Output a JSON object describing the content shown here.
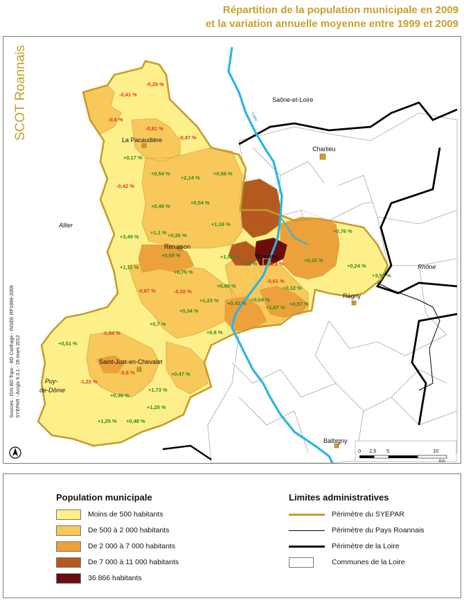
{
  "title": {
    "line1": "Répartition de la population municipale en 2009",
    "line2": "et la variation annuelle moyenne entre 1999 et 2009"
  },
  "brand": {
    "text": "SCOT Roannais"
  },
  "sources": {
    "line1": "Sources : IGN BD Topo - BD Carthage - INSEE RP1999-2009",
    "line2": "SYEPAR - Arcgis 9.3.1 - 26 mars 2012"
  },
  "regions": {
    "saone": "Saône-et-Loire",
    "allier": "Allier",
    "rhone": "Rhône",
    "puy1": "Puy-",
    "puy2": "de-Dôme",
    "loire_river": "Loire"
  },
  "towns": {
    "la_pacaudiere": "La Pacaudière",
    "charlieu": "Charlieu",
    "renaison": "Renaison",
    "roanne": "Roanne",
    "regny": "Régny",
    "saint_just": "Saint-Just-en-Chevalet",
    "balbigny": "Balbigny"
  },
  "variations": [
    "-0,29 %",
    "-0,41 %",
    "-0,6 %",
    "-0,81 %",
    "-0,47 %",
    "+0,17 %",
    "-0,42 %",
    "+0,54 %",
    "+2,14 %",
    "+0,56 %",
    "+0,49 %",
    "+0,54 %",
    "-0,18 %",
    "+1,16 %",
    "+3,49 %",
    "+1,1 %",
    "+0,26 %",
    "+0,76 %",
    "+0,59 %",
    "+1,05 %",
    "+1,8 %",
    "-0,2 %",
    "+0,32 %",
    "+1,11 %",
    "+0,75 %",
    "+0,24 %",
    "-0,61 %",
    "+3,53 %",
    "-0,67 %",
    "-0,32 %",
    "+0,96 %",
    "+0,12 %",
    "+1,23 %",
    "+0,42 %",
    "+0,04 %",
    "+0,57 %",
    "+0,34 %",
    "+1,67 %",
    "+0,7 %",
    "-0,94 %",
    "+0,8 %",
    "+0,51 %",
    "-0,8 %",
    "+0,47 %",
    "-1,22 %",
    "+1,73 %",
    "+0,36 %",
    "+1,25 %",
    "+1,25 %",
    "+0,48 %"
  ],
  "scale": {
    "t0": "0",
    "t1": "2,5",
    "t2": "5",
    "t3": "10",
    "unit": "Km"
  },
  "legend": {
    "population": {
      "heading": "Population municipale",
      "items": [
        {
          "label": "Moins de 500 habitants",
          "color": "#fdf08a"
        },
        {
          "label": "De 500 à 2 000 habitants",
          "color": "#f8c85a"
        },
        {
          "label": "De 2 000 à 7 000 habitants",
          "color": "#eca13a"
        },
        {
          "label": "De 7 000 à 11 000 habitants",
          "color": "#b45a1e"
        },
        {
          "label": "36 866 habitants",
          "color": "#6b0d0d"
        }
      ]
    },
    "limits": {
      "heading": "Limites administratives",
      "items": [
        {
          "label": "Périmètre du SYEPAR",
          "style": "gold-line"
        },
        {
          "label": "Périmètre du Pays Roannais",
          "style": "thin-black-line"
        },
        {
          "label": "Périmètre de la Loire",
          "style": "thick-black-line"
        },
        {
          "label": "Communes de la Loire",
          "style": "box"
        }
      ]
    }
  },
  "colors": {
    "accent_gold": "#c8a02a",
    "river": "#2bb5e6",
    "positive_label": "#2e8b1e",
    "negative_label": "#d83a2a"
  }
}
